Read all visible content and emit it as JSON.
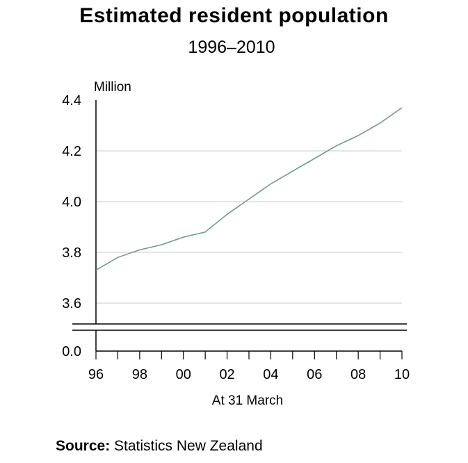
{
  "chart_data": {
    "type": "line",
    "title": "Estimated resident population",
    "subtitle": "1996–2010",
    "ylabel": "Million",
    "xlabel": "At 31 March",
    "y_ticks": [
      "4.4",
      "4.2",
      "4.0",
      "3.8",
      "3.6"
    ],
    "y_tick_values": [
      4.4,
      4.2,
      4.0,
      3.8,
      3.6
    ],
    "y_zero_label": "0.0",
    "ylim": [
      3.52,
      4.4
    ],
    "axis_break": true,
    "x_ticks": [
      "96",
      "98",
      "00",
      "02",
      "04",
      "06",
      "08",
      "10"
    ],
    "x_tick_years": [
      1996,
      1998,
      2000,
      2002,
      2004,
      2006,
      2008,
      2010
    ],
    "xlim": [
      1996,
      2010
    ],
    "grid": true,
    "line_color": "#6f9a92",
    "grid_color": "#c8c8c8",
    "series": [
      {
        "x": [
          1996,
          1997,
          1998,
          1999,
          2000,
          2001,
          2002,
          2003,
          2004,
          2005,
          2006,
          2007,
          2008,
          2009,
          2010
        ],
        "values": [
          3.73,
          3.78,
          3.81,
          3.83,
          3.86,
          3.88,
          3.95,
          4.01,
          4.07,
          4.12,
          4.17,
          4.22,
          4.26,
          4.31,
          4.37
        ]
      }
    ]
  },
  "source": {
    "label": "Source:",
    "text": "Statistics New Zealand"
  }
}
